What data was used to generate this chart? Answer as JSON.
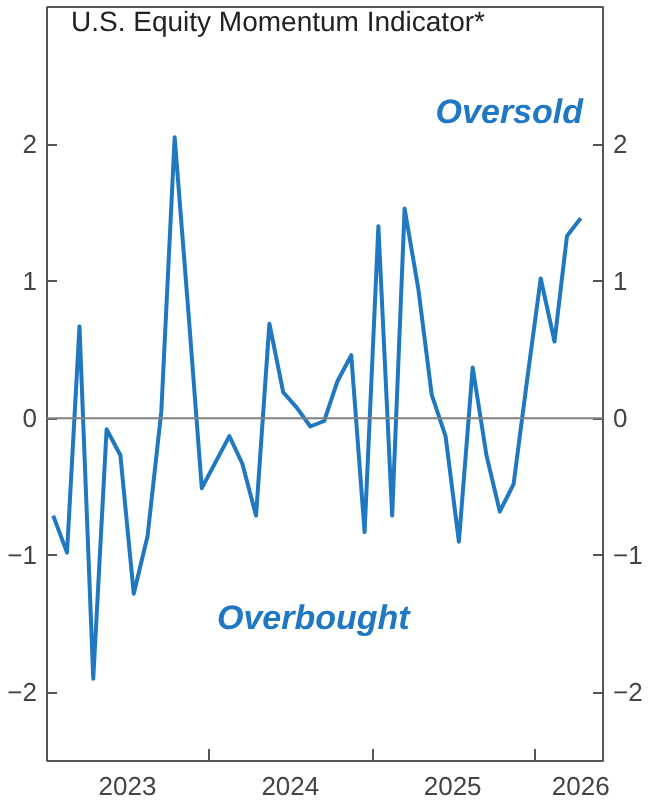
{
  "chart_data": {
    "type": "line",
    "title": "U.S. Equity Momentum Indicator*",
    "x": [
      "2023-01-15",
      "2023-02-15",
      "2023-03-15",
      "2023-04-15",
      "2023-05-15",
      "2023-06-15",
      "2023-07-15",
      "2023-08-15",
      "2023-09-15",
      "2023-10-15",
      "2023-11-15",
      "2023-12-15",
      "2024-01-15",
      "2024-02-15",
      "2024-03-15",
      "2024-04-15",
      "2024-05-15",
      "2024-06-15",
      "2024-07-15",
      "2024-08-15",
      "2024-09-15",
      "2024-10-15",
      "2024-11-15",
      "2024-12-15",
      "2025-01-15",
      "2025-02-15",
      "2025-03-15",
      "2025-04-15",
      "2025-05-15",
      "2025-06-15",
      "2025-07-15",
      "2025-08-15",
      "2025-09-15",
      "2025-10-15",
      "2025-11-15",
      "2025-12-15",
      "2026-01-15",
      "2026-02-15",
      "2026-03-15",
      "2026-04-15"
    ],
    "series": [
      {
        "color": "#1f78c1",
        "values": [
          -0.71,
          -0.98,
          0.67,
          -1.9,
          -0.08,
          -0.27,
          -1.28,
          -0.86,
          0.05,
          2.05,
          0.77,
          -0.51,
          -0.32,
          -0.13,
          -0.33,
          -0.71,
          0.69,
          0.19,
          0.08,
          -0.06,
          -0.02,
          0.27,
          0.46,
          -0.83,
          1.4,
          -0.71,
          1.53,
          0.94,
          0.17,
          -0.13,
          -0.9,
          0.37,
          -0.27,
          -0.68,
          -0.48,
          0.27,
          1.02,
          0.56,
          1.33,
          1.46
        ]
      }
    ],
    "xlim": [
      "2023-01-01",
      "2026-06-04"
    ],
    "xticks": [
      {
        "value": "2024-01-01",
        "label": null
      },
      {
        "value": "2025-01-01",
        "label": null
      },
      {
        "value": "2026-01-01",
        "label": null
      },
      {
        "value": "2023-07-01",
        "label": "2023"
      },
      {
        "value": "2024-07-01",
        "label": "2024"
      },
      {
        "value": "2025-07-01",
        "label": "2025"
      },
      {
        "value": "2026-04-15",
        "label": "2026"
      }
    ],
    "ylim": [
      -2.5,
      3
    ],
    "yticks": [
      -2,
      -1,
      0,
      1,
      2
    ],
    "y2lim": [
      -2.5,
      3
    ],
    "y2ticks": [
      -2,
      -1,
      0,
      1,
      2
    ],
    "ref_lines": [
      {
        "axis": "y",
        "value": 0,
        "color": "#808080"
      }
    ],
    "annotations": [
      "Oversold",
      "Overbought"
    ],
    "grid": false,
    "marker": "none",
    "line_style": "solid"
  }
}
